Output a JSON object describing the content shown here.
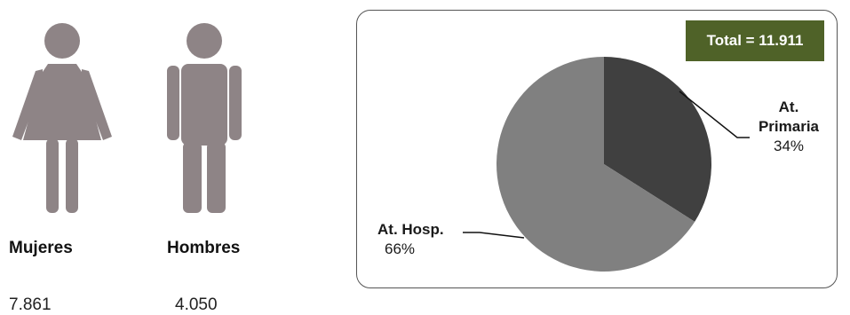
{
  "people": {
    "women": {
      "label": "Mujeres",
      "value": "7.861",
      "icon": "woman-icon",
      "color": "#8e8486"
    },
    "men": {
      "label": "Hombres",
      "value": "4.050",
      "icon": "man-icon",
      "color": "#8e8486"
    }
  },
  "total": {
    "label": "Total  = 11.911",
    "color": "#4f6228"
  },
  "chart_data": {
    "type": "pie",
    "title": "",
    "slices": [
      {
        "name": "At. Primaria",
        "name_lines": [
          "At.",
          "Primaria"
        ],
        "pct_label": "34%",
        "value": 34,
        "color": "#404040"
      },
      {
        "name": "At. Hosp.",
        "name_lines": [
          "At. Hosp."
        ],
        "pct_label": "66%",
        "value": 66,
        "color": "#808080"
      }
    ],
    "legend": "none"
  }
}
